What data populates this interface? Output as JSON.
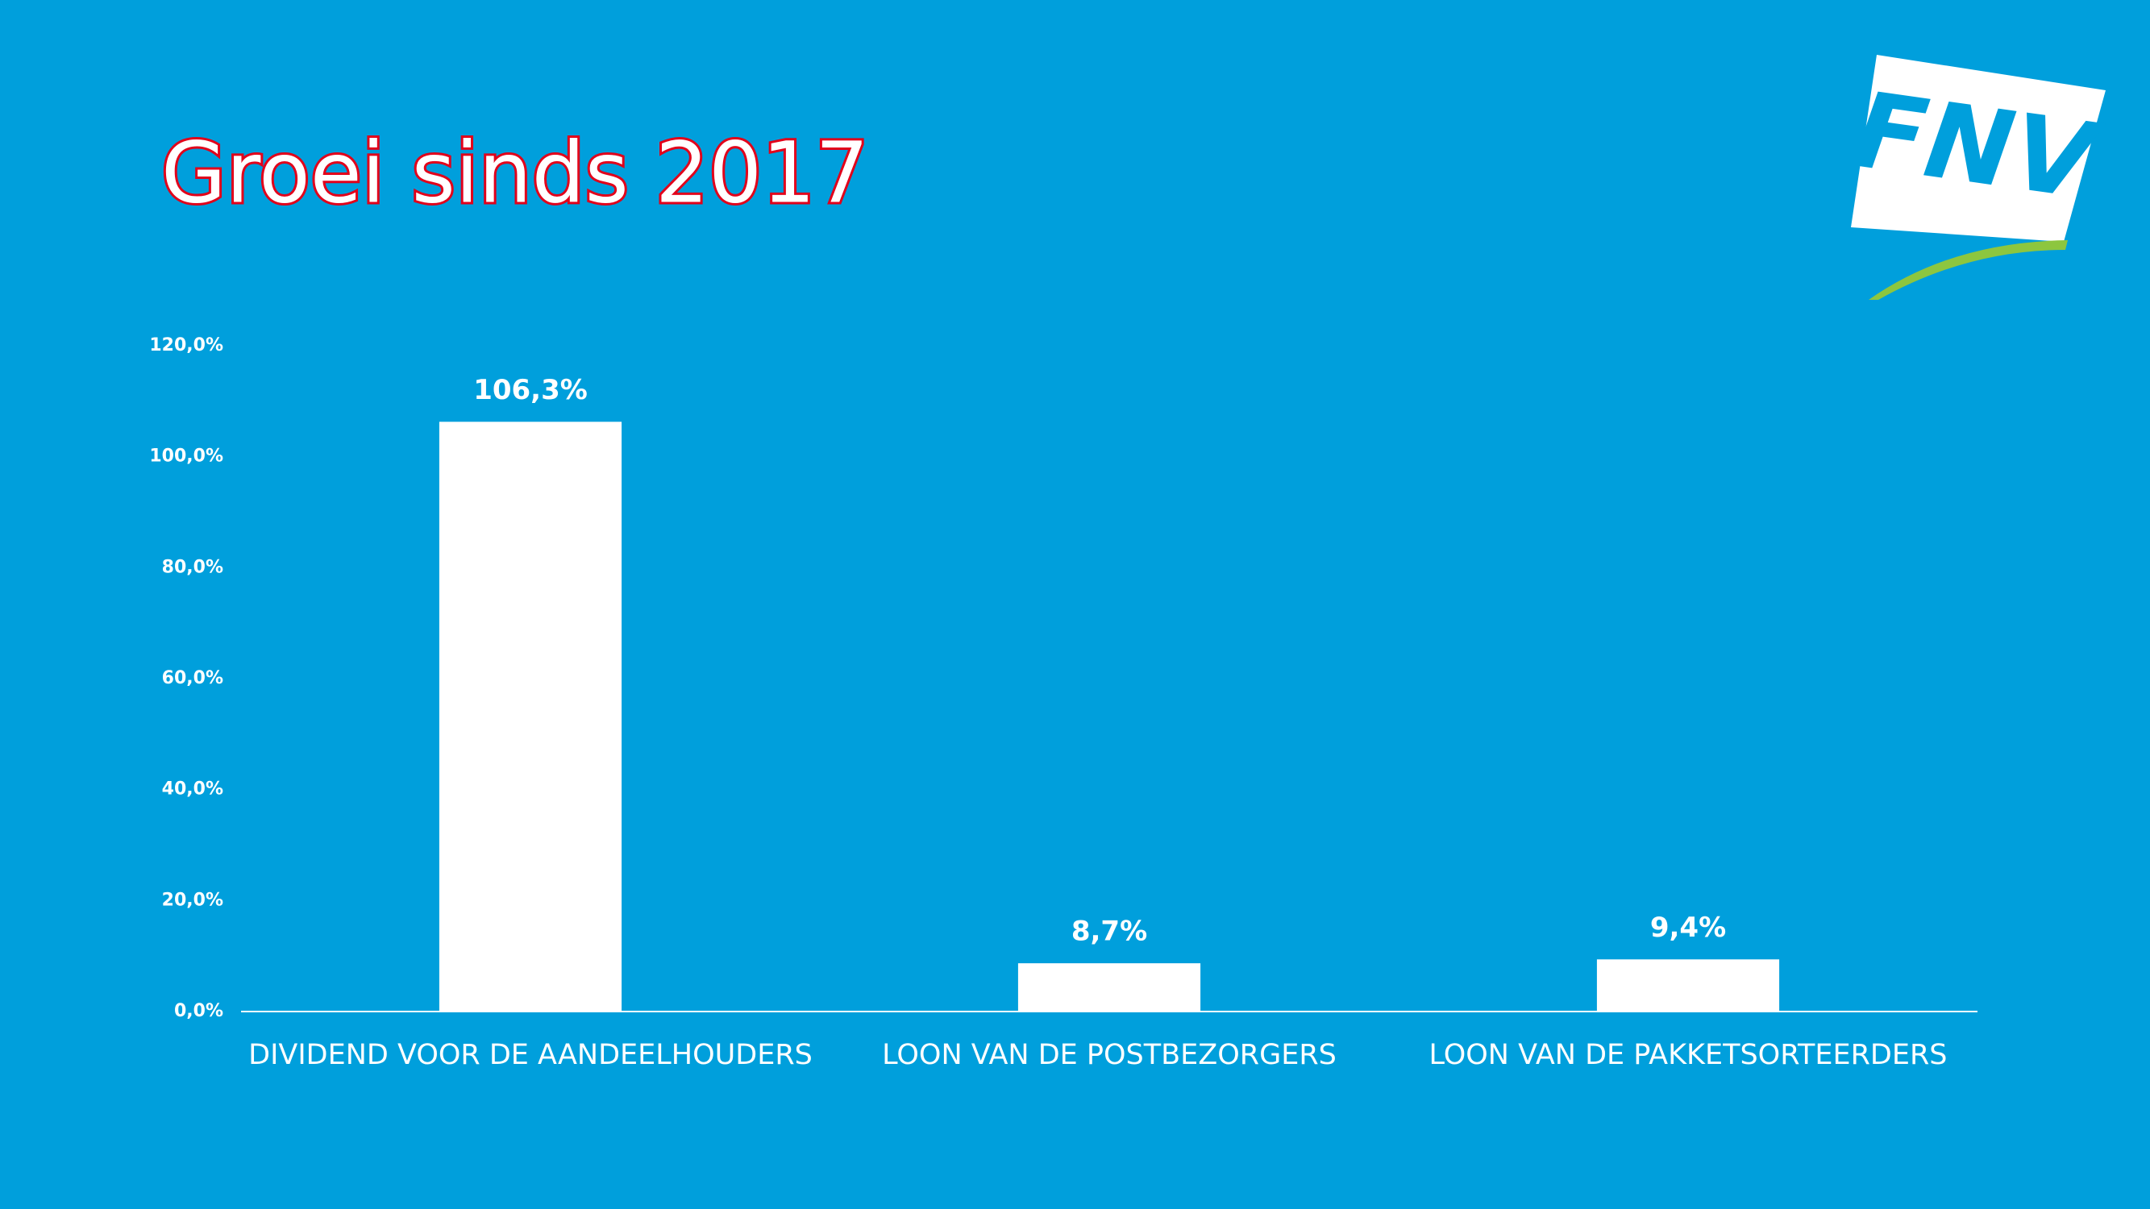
{
  "logo": "FNV",
  "chart_data": {
    "type": "bar",
    "title": "Groei sinds 2017",
    "categories": [
      "DIVIDEND VOOR DE AANDEELHOUDERS",
      "LOON VAN DE POSTBEZORGERS",
      "LOON VAN DE PAKKETSORTEERDERS"
    ],
    "values": [
      106.3,
      8.7,
      9.4
    ],
    "value_labels": [
      "106,3%",
      "8,7%",
      "9,4%"
    ],
    "color": "#ffffff",
    "ylim": [
      0,
      120
    ],
    "yticks": [
      {
        "value": 0,
        "label": "0,0%"
      },
      {
        "value": 20,
        "label": "20,0%"
      },
      {
        "value": 40,
        "label": "40,0%"
      },
      {
        "value": 60,
        "label": "60,0%"
      },
      {
        "value": 80,
        "label": "80,0%"
      },
      {
        "value": 100,
        "label": "100,0%"
      },
      {
        "value": 120,
        "label": "120,0%"
      }
    ],
    "grid": false
  }
}
